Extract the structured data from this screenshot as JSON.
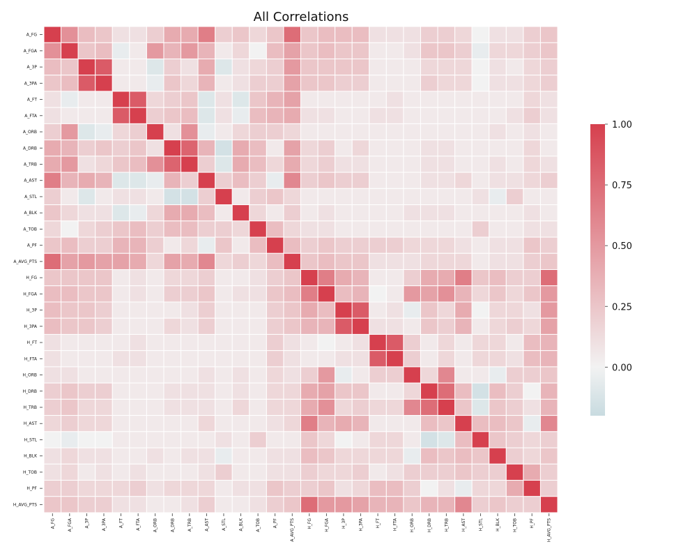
{
  "chart_data": {
    "type": "heatmap",
    "title": "All Correlations",
    "labels": [
      "A_FG",
      "A_FGA",
      "A_3P",
      "A_3PA",
      "A_FT",
      "A_FTA",
      "A_ORB",
      "A_DRB",
      "A_TRB",
      "A_AST",
      "A_STL",
      "A_BLK",
      "A_TOB",
      "A_PF",
      "A_AVG_PTS",
      "H_FG",
      "H_FGA",
      "H_3P",
      "H_3PA",
      "H_FT",
      "H_FTA",
      "H_ORB",
      "H_DRB",
      "H_TRB",
      "H_AST",
      "H_STL",
      "H_BLK",
      "H_TOB",
      "H_PF",
      "H_AVG_PTS"
    ],
    "matrix": [
      [
        1.0,
        0.55,
        0.3,
        0.25,
        0.1,
        0.1,
        0.2,
        0.4,
        0.4,
        0.65,
        0.2,
        0.25,
        0.15,
        0.25,
        0.75,
        0.25,
        0.3,
        0.3,
        0.3,
        0.1,
        0.1,
        0.1,
        0.2,
        0.2,
        0.15,
        0.0,
        0.1,
        0.1,
        0.2,
        0.25
      ],
      [
        0.55,
        1.0,
        0.25,
        0.3,
        -0.05,
        0.05,
        0.5,
        0.35,
        0.5,
        0.35,
        0.05,
        0.15,
        0.0,
        0.3,
        0.45,
        0.25,
        0.3,
        0.25,
        0.25,
        0.05,
        0.05,
        0.1,
        0.25,
        0.25,
        0.2,
        -0.05,
        0.15,
        0.15,
        0.2,
        0.25
      ],
      [
        0.3,
        0.25,
        1.0,
        0.85,
        0.05,
        0.05,
        -0.1,
        0.2,
        0.1,
        0.4,
        -0.1,
        0.1,
        0.15,
        0.2,
        0.5,
        0.25,
        0.25,
        0.25,
        0.25,
        0.05,
        0.05,
        0.05,
        0.15,
        0.15,
        0.15,
        0.0,
        0.1,
        0.05,
        0.15,
        0.2
      ],
      [
        0.25,
        0.3,
        0.85,
        1.0,
        0.05,
        0.05,
        -0.05,
        0.25,
        0.15,
        0.35,
        0.05,
        0.1,
        0.2,
        0.2,
        0.45,
        0.25,
        0.25,
        0.2,
        0.2,
        0.05,
        0.05,
        0.05,
        0.2,
        0.15,
        0.15,
        0.0,
        0.1,
        0.1,
        0.15,
        0.2
      ],
      [
        0.1,
        -0.05,
        0.05,
        0.05,
        1.0,
        0.85,
        0.15,
        0.2,
        0.25,
        -0.1,
        0.1,
        -0.1,
        0.25,
        0.35,
        0.45,
        0.05,
        0.05,
        0.05,
        0.05,
        0.05,
        0.1,
        0.05,
        0.05,
        0.05,
        0.05,
        0.05,
        0.05,
        0.05,
        0.15,
        0.1
      ],
      [
        0.1,
        0.05,
        0.05,
        0.05,
        0.85,
        1.0,
        0.2,
        0.25,
        0.3,
        -0.1,
        0.1,
        -0.05,
        0.3,
        0.35,
        0.4,
        0.1,
        0.1,
        0.05,
        0.05,
        0.1,
        0.1,
        0.05,
        0.05,
        0.05,
        0.05,
        0.05,
        0.05,
        0.1,
        0.2,
        0.1
      ],
      [
        0.2,
        0.5,
        -0.1,
        -0.05,
        0.15,
        0.2,
        1.0,
        0.1,
        0.55,
        -0.05,
        0.05,
        0.15,
        0.2,
        0.2,
        0.15,
        0.05,
        0.05,
        0.05,
        0.05,
        0.05,
        0.05,
        0.05,
        0.05,
        0.05,
        0.05,
        0.05,
        0.1,
        0.05,
        0.1,
        0.05
      ],
      [
        0.4,
        0.35,
        0.2,
        0.25,
        0.2,
        0.25,
        0.1,
        1.0,
        0.8,
        0.35,
        -0.15,
        0.4,
        0.3,
        0.05,
        0.45,
        0.15,
        0.2,
        0.05,
        0.15,
        0.05,
        0.05,
        0.05,
        0.1,
        0.1,
        0.05,
        0.05,
        0.05,
        0.05,
        0.15,
        0.05
      ],
      [
        0.4,
        0.5,
        0.1,
        0.15,
        0.25,
        0.3,
        0.55,
        0.8,
        1.0,
        0.2,
        -0.1,
        0.4,
        0.3,
        0.15,
        0.4,
        0.15,
        0.2,
        0.1,
        0.1,
        0.05,
        0.05,
        0.05,
        0.1,
        0.1,
        0.05,
        0.05,
        0.1,
        0.05,
        0.15,
        0.1
      ],
      [
        0.65,
        0.35,
        0.4,
        0.35,
        -0.1,
        -0.1,
        -0.05,
        0.35,
        0.2,
        1.0,
        0.2,
        0.3,
        0.2,
        -0.05,
        0.6,
        0.2,
        0.25,
        0.2,
        0.2,
        0.05,
        0.05,
        0.05,
        0.1,
        0.1,
        0.15,
        0.05,
        0.1,
        0.1,
        0.15,
        0.2
      ],
      [
        0.2,
        0.05,
        -0.1,
        0.05,
        0.1,
        0.1,
        0.05,
        -0.15,
        -0.15,
        0.2,
        1.0,
        0.05,
        0.2,
        0.25,
        0.15,
        0.05,
        0.05,
        0.05,
        0.05,
        0.05,
        0.05,
        0.05,
        0.05,
        0.05,
        0.05,
        0.1,
        -0.05,
        0.2,
        0.05,
        0.05
      ],
      [
        0.25,
        0.15,
        0.1,
        0.1,
        -0.1,
        -0.05,
        0.15,
        0.4,
        0.4,
        0.3,
        0.05,
        1.0,
        0.15,
        0.05,
        0.2,
        0.05,
        0.1,
        0.05,
        0.05,
        0.05,
        0.05,
        0.1,
        0.1,
        0.1,
        0.05,
        0.05,
        0.05,
        0.05,
        0.1,
        0.05
      ],
      [
        0.15,
        0.0,
        0.15,
        0.2,
        0.25,
        0.3,
        0.2,
        0.3,
        0.3,
        0.2,
        0.2,
        0.15,
        1.0,
        0.3,
        0.15,
        0.1,
        0.1,
        0.05,
        0.05,
        0.05,
        0.05,
        0.05,
        0.05,
        0.05,
        0.05,
        0.2,
        0.05,
        0.05,
        0.1,
        0.1
      ],
      [
        0.25,
        0.3,
        0.2,
        0.2,
        0.35,
        0.35,
        0.2,
        0.05,
        0.15,
        -0.05,
        0.25,
        0.05,
        0.3,
        1.0,
        0.3,
        0.2,
        0.25,
        0.2,
        0.2,
        0.2,
        0.2,
        0.15,
        0.15,
        0.15,
        0.1,
        0.05,
        0.1,
        0.1,
        0.25,
        0.2
      ],
      [
        0.75,
        0.45,
        0.5,
        0.45,
        0.45,
        0.4,
        0.15,
        0.45,
        0.4,
        0.6,
        0.15,
        0.2,
        0.15,
        0.3,
        1.0,
        0.25,
        0.3,
        0.25,
        0.25,
        0.1,
        0.1,
        0.1,
        0.15,
        0.15,
        0.15,
        0.05,
        0.1,
        0.1,
        0.2,
        0.25
      ],
      [
        0.25,
        0.25,
        0.25,
        0.25,
        0.05,
        0.1,
        0.05,
        0.15,
        0.15,
        0.2,
        0.05,
        0.05,
        0.1,
        0.2,
        0.25,
        1.0,
        0.65,
        0.4,
        0.35,
        0.05,
        0.05,
        0.2,
        0.4,
        0.4,
        0.65,
        0.25,
        0.3,
        0.2,
        0.2,
        0.75
      ],
      [
        0.3,
        0.3,
        0.25,
        0.25,
        0.05,
        0.1,
        0.05,
        0.2,
        0.2,
        0.25,
        0.05,
        0.1,
        0.1,
        0.25,
        0.3,
        0.65,
        1.0,
        0.3,
        0.35,
        0.0,
        0.05,
        0.5,
        0.45,
        0.55,
        0.35,
        0.15,
        0.25,
        0.15,
        0.25,
        0.5
      ],
      [
        0.3,
        0.25,
        0.25,
        0.2,
        0.05,
        0.05,
        0.05,
        0.05,
        0.1,
        0.2,
        0.05,
        0.05,
        0.05,
        0.2,
        0.25,
        0.4,
        0.3,
        1.0,
        0.85,
        0.05,
        0.1,
        -0.05,
        0.25,
        0.15,
        0.4,
        0.0,
        0.15,
        0.15,
        0.1,
        0.5
      ],
      [
        0.3,
        0.25,
        0.25,
        0.2,
        0.05,
        0.05,
        0.05,
        0.15,
        0.1,
        0.2,
        0.05,
        0.05,
        0.05,
        0.2,
        0.25,
        0.35,
        0.35,
        0.85,
        1.0,
        0.1,
        0.1,
        0.05,
        0.25,
        0.2,
        0.35,
        0.05,
        0.15,
        0.2,
        0.15,
        0.45
      ],
      [
        0.1,
        0.05,
        0.05,
        0.05,
        0.05,
        0.1,
        0.05,
        0.05,
        0.05,
        0.05,
        0.05,
        0.05,
        0.05,
        0.2,
        0.1,
        0.05,
        0.0,
        0.05,
        0.1,
        1.0,
        0.85,
        0.2,
        0.05,
        0.15,
        0.05,
        0.15,
        0.15,
        0.05,
        0.3,
        0.35
      ],
      [
        0.1,
        0.05,
        0.05,
        0.05,
        0.1,
        0.1,
        0.05,
        0.05,
        0.05,
        0.05,
        0.05,
        0.05,
        0.05,
        0.2,
        0.1,
        0.05,
        0.05,
        0.1,
        0.1,
        0.85,
        1.0,
        0.2,
        0.05,
        0.15,
        0.05,
        0.15,
        0.15,
        0.1,
        0.3,
        0.35
      ],
      [
        0.1,
        0.1,
        0.05,
        0.05,
        0.05,
        0.05,
        0.05,
        0.05,
        0.05,
        0.1,
        0.05,
        0.1,
        0.05,
        0.15,
        0.1,
        0.2,
        0.5,
        -0.05,
        0.05,
        0.2,
        0.2,
        1.0,
        0.15,
        0.6,
        0.05,
        0.05,
        -0.05,
        0.2,
        0.2,
        0.25
      ],
      [
        0.2,
        0.25,
        0.2,
        0.2,
        0.05,
        0.05,
        0.05,
        0.1,
        0.1,
        0.1,
        0.05,
        0.1,
        0.05,
        0.15,
        0.15,
        0.4,
        0.45,
        0.25,
        0.25,
        0.05,
        0.05,
        0.15,
        1.0,
        0.75,
        0.3,
        -0.15,
        0.3,
        0.2,
        0.0,
        0.35
      ],
      [
        0.2,
        0.25,
        0.15,
        0.15,
        0.05,
        0.05,
        0.05,
        0.1,
        0.1,
        0.1,
        0.05,
        0.15,
        0.05,
        0.15,
        0.15,
        0.4,
        0.55,
        0.15,
        0.2,
        0.15,
        0.15,
        0.6,
        0.75,
        1.0,
        0.25,
        -0.1,
        0.25,
        0.2,
        0.1,
        0.35
      ],
      [
        0.15,
        0.2,
        0.15,
        0.15,
        0.05,
        0.05,
        0.05,
        0.05,
        0.05,
        0.15,
        0.05,
        0.05,
        0.05,
        0.1,
        0.15,
        0.65,
        0.35,
        0.4,
        0.35,
        0.05,
        0.05,
        0.05,
        0.3,
        0.25,
        1.0,
        0.3,
        0.3,
        0.25,
        -0.05,
        0.6
      ],
      [
        0.0,
        -0.05,
        0.0,
        0.0,
        0.05,
        0.05,
        0.05,
        0.05,
        0.05,
        0.05,
        0.1,
        0.05,
        0.2,
        0.05,
        0.05,
        0.25,
        0.15,
        0.0,
        0.05,
        0.15,
        0.15,
        0.05,
        -0.15,
        -0.1,
        0.3,
        1.0,
        0.25,
        0.2,
        0.15,
        0.2
      ],
      [
        0.1,
        0.15,
        0.1,
        0.1,
        0.05,
        0.05,
        0.1,
        0.05,
        0.1,
        0.1,
        -0.05,
        0.05,
        0.05,
        0.1,
        0.1,
        0.3,
        0.25,
        0.15,
        0.15,
        0.15,
        0.15,
        -0.05,
        0.3,
        0.25,
        0.3,
        0.25,
        1.0,
        0.2,
        0.15,
        0.25
      ],
      [
        0.1,
        0.15,
        0.05,
        0.1,
        0.05,
        0.1,
        0.05,
        0.05,
        0.05,
        0.1,
        0.2,
        0.05,
        0.05,
        0.1,
        0.1,
        0.2,
        0.15,
        0.15,
        0.2,
        0.05,
        0.1,
        0.2,
        0.2,
        0.2,
        0.25,
        0.2,
        0.2,
        1.0,
        0.4,
        0.2
      ],
      [
        0.2,
        0.2,
        0.15,
        0.15,
        0.15,
        0.2,
        0.1,
        0.15,
        0.15,
        0.15,
        0.05,
        0.1,
        0.1,
        0.25,
        0.2,
        0.2,
        0.25,
        0.1,
        0.15,
        0.3,
        0.3,
        0.2,
        0.0,
        0.1,
        -0.05,
        0.15,
        0.15,
        0.4,
        1.0,
        0.2
      ],
      [
        0.25,
        0.25,
        0.2,
        0.2,
        0.1,
        0.1,
        0.05,
        0.05,
        0.1,
        0.2,
        0.05,
        0.05,
        0.1,
        0.2,
        0.25,
        0.75,
        0.5,
        0.5,
        0.45,
        0.35,
        0.35,
        0.25,
        0.35,
        0.35,
        0.6,
        0.2,
        0.25,
        0.2,
        0.2,
        1.0
      ]
    ],
    "colorbar": {
      "vmin": -0.2,
      "vmax": 1.0,
      "ticks": [
        1.0,
        0.75,
        0.5,
        0.25,
        0.0
      ],
      "tick_labels": [
        "1.00",
        "0.75",
        "0.50",
        "0.25",
        "0.00"
      ],
      "colors": {
        "low": "#c8dbe0",
        "mid": "#f2f2f2",
        "high": "#d6404e"
      }
    }
  }
}
